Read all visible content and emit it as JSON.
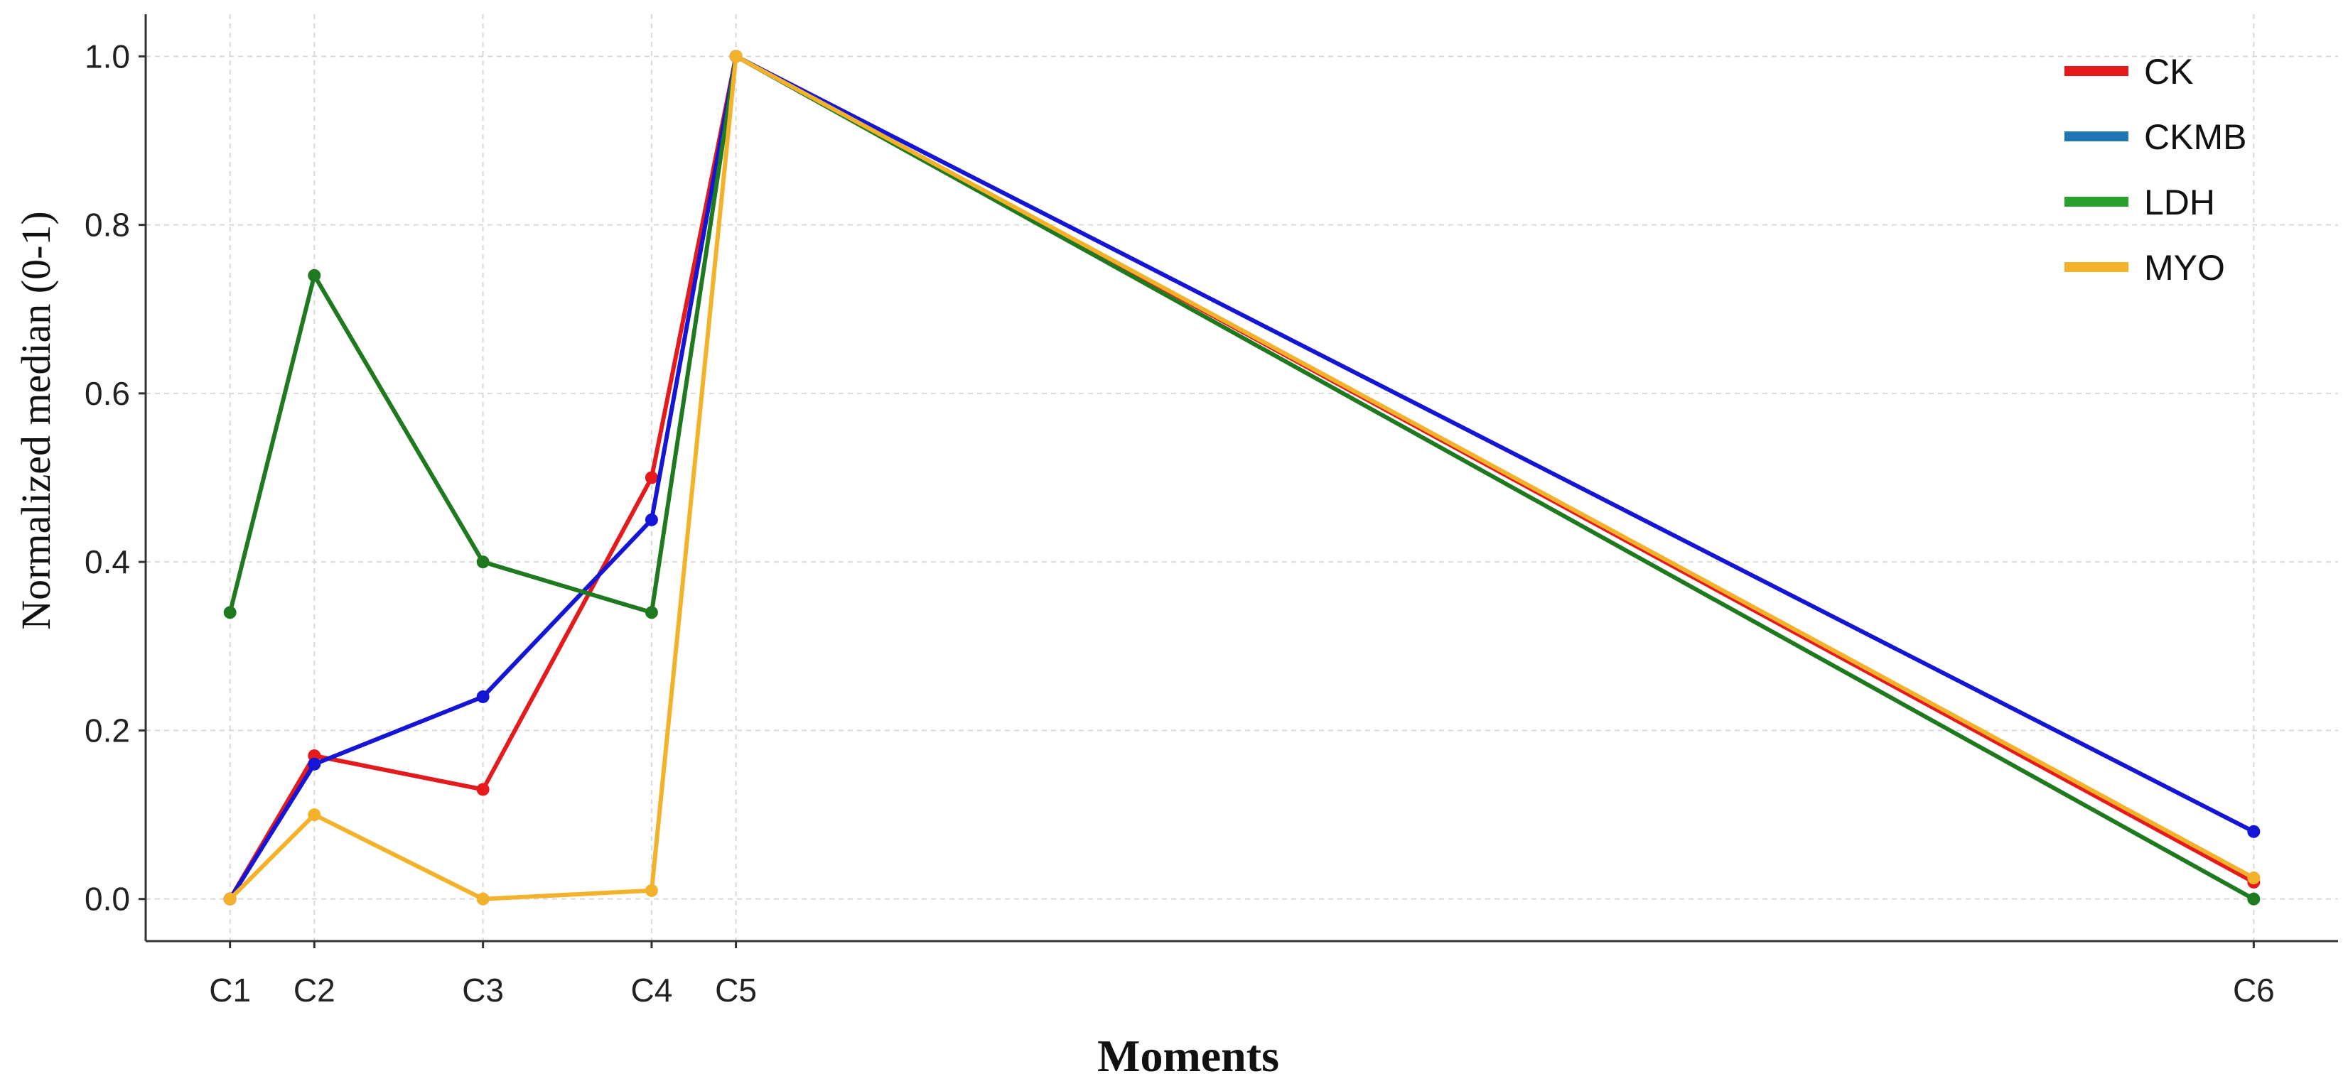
{
  "chart_data": {
    "type": "line",
    "title": "",
    "xlabel": "Moments",
    "ylabel": "Normalized median (0-1)",
    "grid": true,
    "legend_position": "top-right",
    "categories": [
      "C1",
      "C2",
      "C3",
      "C4",
      "C5",
      "C6"
    ],
    "x": [
      1,
      2,
      4,
      6,
      7,
      25
    ],
    "ylim": [
      -0.05,
      1.05
    ],
    "yticks": [
      "0.0",
      "0.2",
      "0.4",
      "0.6",
      "0.8",
      "1.0"
    ],
    "series": [
      {
        "name": "CK",
        "color": "#e41a1c",
        "values": [
          0.0,
          0.17,
          0.13,
          0.5,
          1.0,
          0.02
        ]
      },
      {
        "name": "CKMB",
        "color": "#1515d6",
        "legend_color": "#1f77b4",
        "values": [
          0.0,
          0.16,
          0.24,
          0.45,
          1.0,
          0.08
        ]
      },
      {
        "name": "LDH",
        "color": "#1f7a1f",
        "legend_color": "#2ca02c",
        "values": [
          0.34,
          0.74,
          0.4,
          0.34,
          1.0,
          0.0
        ]
      },
      {
        "name": "MYO",
        "color": "#f4b12a",
        "values": [
          0.0,
          0.1,
          0.0,
          0.01,
          1.0,
          0.025
        ]
      }
    ]
  }
}
